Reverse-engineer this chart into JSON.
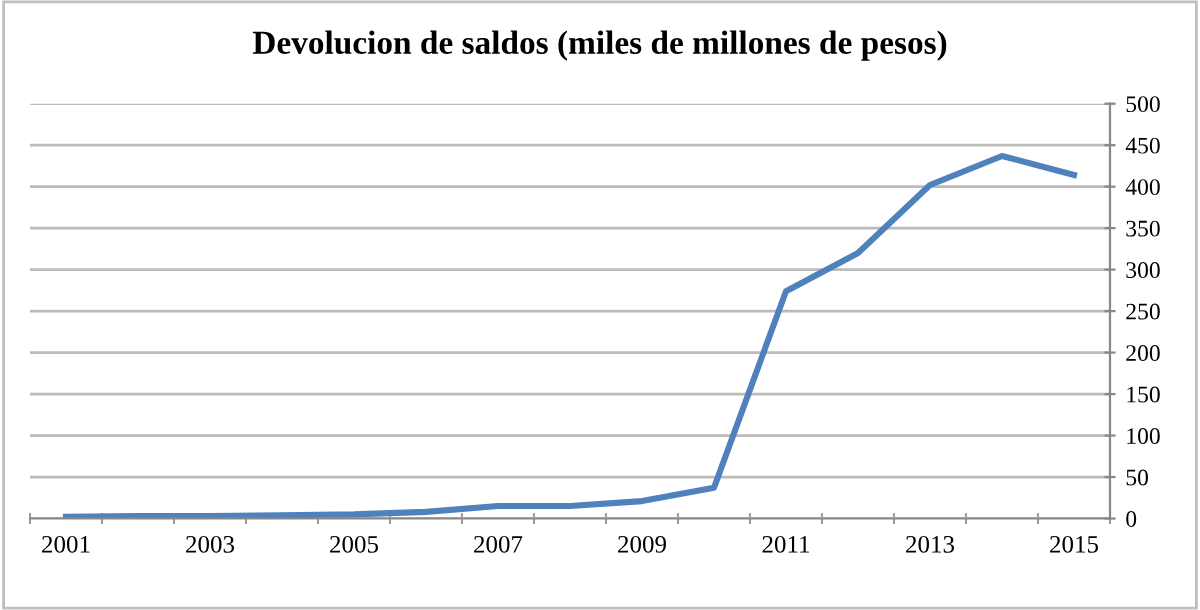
{
  "chart_data": {
    "type": "line",
    "title": "Devolucion de saldos (miles de millones de pesos)",
    "categories": [
      "2001",
      null,
      "2003",
      null,
      "2005",
      null,
      "2007",
      null,
      "2009",
      null,
      "2011",
      null,
      "2013",
      null,
      "2015"
    ],
    "series": [
      {
        "color": "#4f81bd",
        "values": [
          2,
          3,
          3,
          4,
          5,
          8,
          15,
          15,
          21,
          37,
          274,
          320,
          402,
          437,
          414
        ]
      }
    ],
    "ylim": [
      0,
      500
    ],
    "yticks": [
      0,
      50,
      100,
      150,
      200,
      250,
      300,
      350,
      400,
      450,
      500
    ],
    "grid": "y",
    "legend": false,
    "marker": "none",
    "line_style": "solid"
  }
}
